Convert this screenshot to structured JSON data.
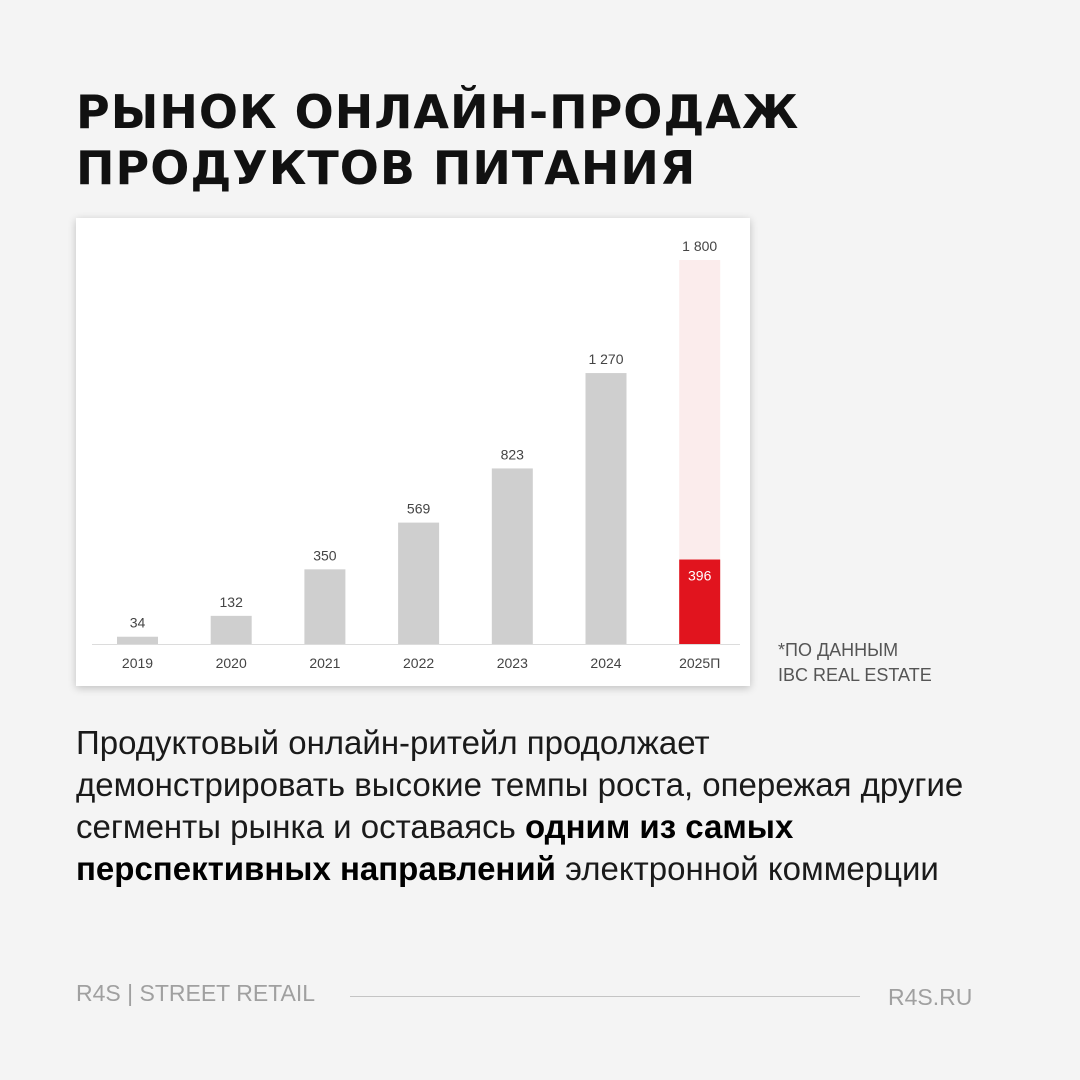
{
  "header": {
    "title_line1": "РЫНОК ОНЛАЙН-ПРОДАЖ",
    "title_line2": "ПРОДУКТОВ ПИТАНИЯ"
  },
  "chart_data": {
    "type": "bar",
    "title": "",
    "xlabel": "",
    "ylabel": "",
    "categories": [
      "2019",
      "2020",
      "2021",
      "2022",
      "2023",
      "2024",
      "2025П"
    ],
    "values": [
      34,
      132,
      350,
      569,
      823,
      1270,
      1800
    ],
    "value_labels": [
      "34",
      "132",
      "350",
      "569",
      "823",
      "1 270",
      "1 800"
    ],
    "highlight": {
      "category": "2025П",
      "value": 396,
      "label": "396"
    },
    "ylim": [
      0,
      1800
    ],
    "grid": false,
    "legend": "none",
    "colors": {
      "bar": "#cfcfcf",
      "forecast_bar": "#fbecec",
      "highlight": "#e1141e"
    }
  },
  "source": {
    "line1": "*по данным",
    "line2": "IBC Real Estate"
  },
  "body": {
    "part1": "Продуктовый онлайн-ритейл продолжает демонстрировать высокие темпы роста, опережая другие сегменты рынка и оставаясь ",
    "bold": "одним из самых перспективных направлений",
    "part2": " электронной коммерции"
  },
  "footer": {
    "brand": "R4S | STREET RETAIL",
    "site": "R4S.RU"
  }
}
